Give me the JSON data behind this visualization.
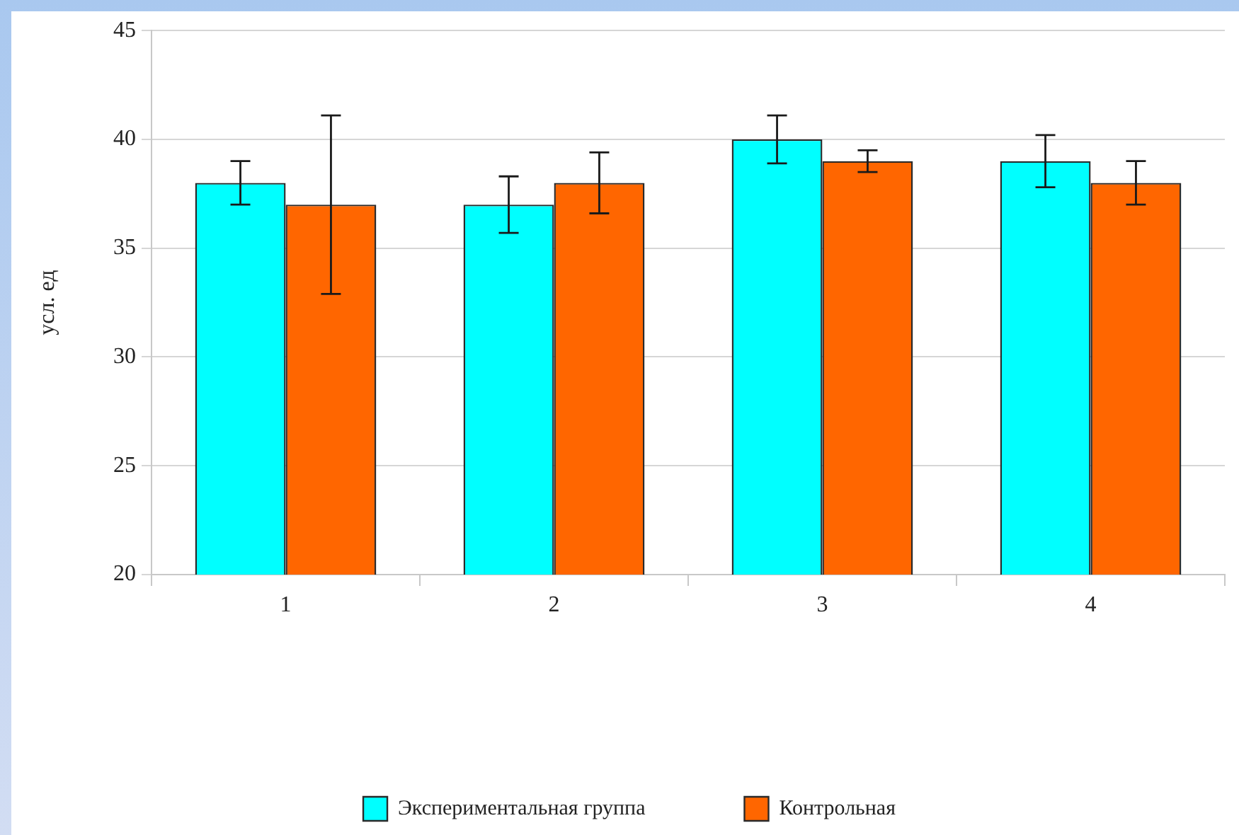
{
  "chart_data": {
    "type": "bar",
    "ylabel": "усл. ед",
    "categories": [
      "1",
      "2",
      "3",
      "4"
    ],
    "series": [
      {
        "name": "Экспериментальная группа",
        "color": "#00ffff",
        "values": [
          38,
          37,
          40,
          39
        ],
        "errors": [
          1,
          1.3,
          1.1,
          1.2
        ]
      },
      {
        "name": "Контрольная",
        "color": "#ff6600",
        "values": [
          37,
          38,
          39,
          38
        ],
        "errors": [
          4.1,
          1.4,
          0.5,
          1
        ]
      }
    ],
    "ylim": [
      20,
      45
    ],
    "yticks": [
      20,
      25,
      30,
      35,
      40,
      45
    ],
    "grid": "y",
    "legend": "bottom"
  }
}
